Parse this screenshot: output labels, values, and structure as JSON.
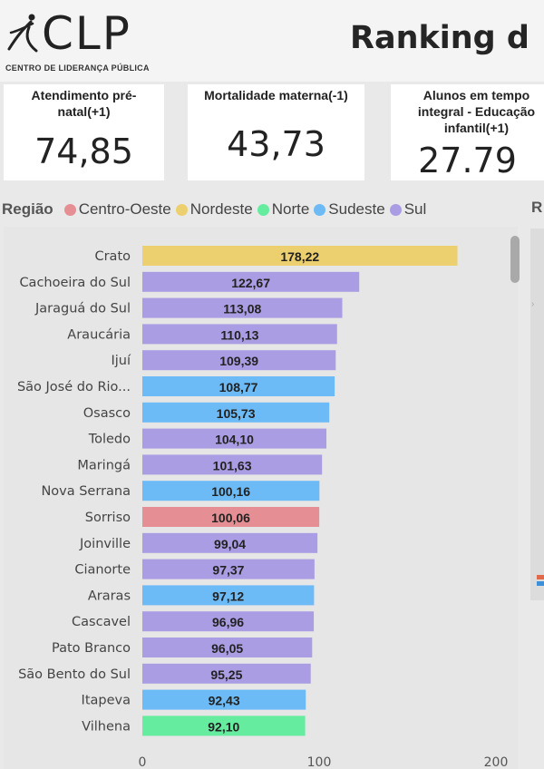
{
  "header": {
    "logo_text": "CLP",
    "logo_subtitle": "CENTRO DE LIDERANÇA PÚBLICA",
    "title": "Ranking d"
  },
  "cards": [
    {
      "label": "Atendimento pré-natal(+1)",
      "value": "74,85"
    },
    {
      "label": "Mortalidade materna(-1)",
      "value": "43,73"
    },
    {
      "label": "Alunos em tempo integral - Educação infantil(+1)",
      "value": "27.79"
    }
  ],
  "legend": {
    "title": "Região",
    "right_title": "R",
    "items": [
      {
        "name": "Centro-Oeste",
        "color": "#e58f95"
      },
      {
        "name": "Nordeste",
        "color": "#ecd070"
      },
      {
        "name": "Norte",
        "color": "#65ec9f"
      },
      {
        "name": "Sudeste",
        "color": "#6dbbf6"
      },
      {
        "name": "Sul",
        "color": "#ab9de3"
      }
    ]
  },
  "chart_data": {
    "type": "bar",
    "orientation": "horizontal",
    "categories": [
      "Crato",
      "Cachoeira do Sul",
      "Jaraguá do Sul",
      "Araucária",
      "Ijuí",
      "São José do Rio...",
      "Osasco",
      "Toledo",
      "Maringá",
      "Nova Serrana",
      "Sorriso",
      "Joinville",
      "Cianorte",
      "Araras",
      "Cascavel",
      "Pato Branco",
      "São Bento do Sul",
      "Itapeva",
      "Vilhena"
    ],
    "values": [
      178.22,
      122.67,
      113.08,
      110.13,
      109.39,
      108.77,
      105.73,
      104.1,
      101.63,
      100.16,
      100.06,
      99.04,
      97.37,
      97.12,
      96.96,
      96.05,
      95.25,
      92.43,
      92.1
    ],
    "value_labels": [
      "178,22",
      "122,67",
      "113,08",
      "110,13",
      "109,39",
      "108,77",
      "105,73",
      "104,10",
      "101,63",
      "100,16",
      "100,06",
      "99,04",
      "97,37",
      "97,12",
      "96,96",
      "96,05",
      "95,25",
      "92,43",
      "92,10"
    ],
    "regions": [
      "Nordeste",
      "Sul",
      "Sul",
      "Sul",
      "Sul",
      "Sudeste",
      "Sudeste",
      "Sul",
      "Sul",
      "Sudeste",
      "Centro-Oeste",
      "Sul",
      "Sul",
      "Sudeste",
      "Sul",
      "Sul",
      "Sul",
      "Sudeste",
      "Norte"
    ],
    "xlim": [
      0,
      200
    ],
    "x_ticks": [
      0,
      100,
      200
    ],
    "x_tick_labels": [
      "0",
      "100",
      "200"
    ],
    "grid": false,
    "legend_position": "top"
  }
}
